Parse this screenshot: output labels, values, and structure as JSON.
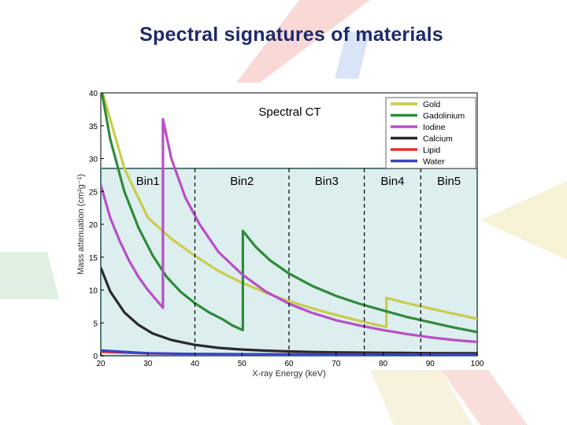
{
  "slide": {
    "title": "Spectral signatures of materials"
  },
  "chart_data": {
    "type": "line",
    "title": "Spectral CT",
    "xlabel": "X-ray Energy (keV)",
    "ylabel": "Mass attenuation (cm²g⁻¹)",
    "xlim": [
      20,
      100
    ],
    "ylim": [
      0,
      40
    ],
    "xticks": [
      "20",
      "30",
      "40",
      "50",
      "60",
      "70",
      "80",
      "90",
      "100"
    ],
    "yticks": [
      "0",
      "5",
      "10",
      "15",
      "20",
      "25",
      "30",
      "35",
      "40"
    ],
    "bins": {
      "labels": [
        "Bin1",
        "Bin2",
        "Bin3",
        "Bin4",
        "Bin5"
      ],
      "boundaries_keV": [
        40,
        60,
        76,
        88
      ]
    },
    "band_range": [
      0,
      28.5
    ],
    "series": [
      {
        "name": "Gold",
        "color": "#c8cc4c",
        "edge_keV": 80.7,
        "points": [
          [
            20,
            41
          ],
          [
            22,
            36
          ],
          [
            25,
            28.5
          ],
          [
            30,
            21
          ],
          [
            35,
            17.8
          ],
          [
            40,
            15.2
          ],
          [
            45,
            12.9
          ],
          [
            50,
            11.1
          ],
          [
            55,
            9.6
          ],
          [
            60,
            8.3
          ],
          [
            65,
            7.2
          ],
          [
            70,
            6.2
          ],
          [
            75,
            5.3
          ],
          [
            78,
            4.8
          ],
          [
            80.7,
            4.4
          ],
          [
            80.7,
            8.8
          ],
          [
            85,
            8.0
          ],
          [
            90,
            7.2
          ],
          [
            95,
            6.4
          ],
          [
            100,
            5.6
          ]
        ]
      },
      {
        "name": "Gadolinium",
        "color": "#2e8b3a",
        "edge_keV": 50.2,
        "points": [
          [
            20,
            41
          ],
          [
            22,
            33
          ],
          [
            25,
            25
          ],
          [
            28,
            19.5
          ],
          [
            31,
            15.3
          ],
          [
            34,
            12
          ],
          [
            37,
            9.7
          ],
          [
            40,
            8.0
          ],
          [
            43,
            6.6
          ],
          [
            46,
            5.5
          ],
          [
            48,
            4.6
          ],
          [
            50.2,
            3.9
          ],
          [
            50.2,
            19.0
          ],
          [
            53,
            16.5
          ],
          [
            56,
            14.5
          ],
          [
            60,
            12.5
          ],
          [
            65,
            10.6
          ],
          [
            70,
            9.1
          ],
          [
            75,
            7.9
          ],
          [
            80,
            6.9
          ],
          [
            85,
            5.9
          ],
          [
            90,
            5.1
          ],
          [
            95,
            4.3
          ],
          [
            100,
            3.6
          ]
        ]
      },
      {
        "name": "Iodine",
        "color": "#b84fc8",
        "edge_keV": 33.2,
        "points": [
          [
            20,
            26
          ],
          [
            22,
            21
          ],
          [
            24,
            17.5
          ],
          [
            26,
            14.5
          ],
          [
            28,
            12
          ],
          [
            30,
            10
          ],
          [
            33.2,
            7.3
          ],
          [
            33.2,
            36
          ],
          [
            35,
            30
          ],
          [
            38,
            24
          ],
          [
            41,
            20
          ],
          [
            45,
            15.8
          ],
          [
            50,
            12.4
          ],
          [
            55,
            9.8
          ],
          [
            60,
            7.9
          ],
          [
            65,
            6.5
          ],
          [
            70,
            5.4
          ],
          [
            75,
            4.6
          ],
          [
            80,
            3.9
          ],
          [
            85,
            3.3
          ],
          [
            90,
            2.8
          ],
          [
            95,
            2.4
          ],
          [
            100,
            2.1
          ]
        ]
      },
      {
        "name": "Calcium",
        "color": "#2a2a2a",
        "points": [
          [
            20,
            13.4
          ],
          [
            22,
            9.8
          ],
          [
            25,
            6.6
          ],
          [
            28,
            4.7
          ],
          [
            31,
            3.4
          ],
          [
            35,
            2.4
          ],
          [
            40,
            1.65
          ],
          [
            45,
            1.2
          ],
          [
            50,
            0.95
          ],
          [
            55,
            0.78
          ],
          [
            60,
            0.66
          ],
          [
            65,
            0.58
          ],
          [
            70,
            0.52
          ],
          [
            80,
            0.45
          ],
          [
            90,
            0.4
          ],
          [
            100,
            0.37
          ]
        ]
      },
      {
        "name": "Lipid",
        "color": "#e03030",
        "points": [
          [
            20,
            0.6
          ],
          [
            30,
            0.35
          ],
          [
            40,
            0.27
          ],
          [
            60,
            0.21
          ],
          [
            80,
            0.19
          ],
          [
            100,
            0.17
          ]
        ]
      },
      {
        "name": "Water",
        "color": "#3344cc",
        "points": [
          [
            20,
            0.8
          ],
          [
            30,
            0.38
          ],
          [
            40,
            0.27
          ],
          [
            60,
            0.21
          ],
          [
            80,
            0.18
          ],
          [
            100,
            0.17
          ]
        ]
      }
    ]
  }
}
